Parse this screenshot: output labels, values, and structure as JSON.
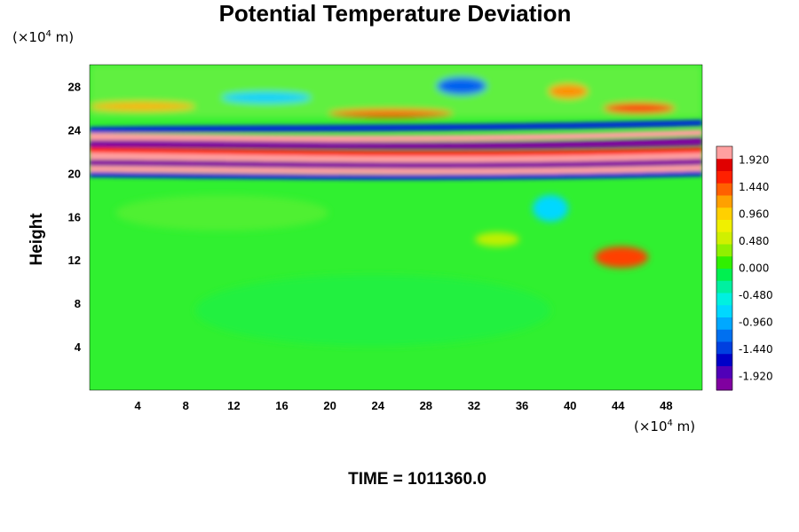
{
  "chart_data": {
    "type": "heatmap",
    "title": "Potential Temperature Deviation",
    "ylabel": "Height",
    "yunit_prefix": "(×10",
    "yunit_exp": "4",
    "yunit_suffix": " m)",
    "xunit_prefix": "(×10",
    "xunit_exp": "4",
    "xunit_suffix": " m)",
    "xlim": [
      0,
      51
    ],
    "ylim": [
      0,
      30
    ],
    "x_ticks": [
      4,
      8,
      12,
      16,
      20,
      24,
      28,
      32,
      36,
      40,
      44,
      48
    ],
    "y_ticks": [
      4,
      8,
      12,
      16,
      20,
      24,
      28
    ],
    "colorbar": {
      "range": [
        -2.16,
        2.16
      ],
      "tick_values": [
        1.92,
        1.44,
        0.96,
        0.48,
        0.0,
        -0.48,
        -0.96,
        -1.44,
        -1.92
      ],
      "tick_labels": [
        "1.920",
        "1.440",
        "0.960",
        "0.480",
        "0.000",
        "-0.480",
        "-0.960",
        "-1.440",
        "-1.920"
      ],
      "colors": [
        "#8000a0",
        "#5000b8",
        "#0000c8",
        "#0040e0",
        "#0070f0",
        "#00a8ff",
        "#00d8ff",
        "#00f0e0",
        "#00f0a0",
        "#00f050",
        "#30f000",
        "#90f000",
        "#d0f000",
        "#f0f000",
        "#ffd000",
        "#ffa000",
        "#ff6000",
        "#ff2000",
        "#e00000",
        "#ffa0a0"
      ]
    },
    "time_label": "TIME = 1011360.0"
  }
}
